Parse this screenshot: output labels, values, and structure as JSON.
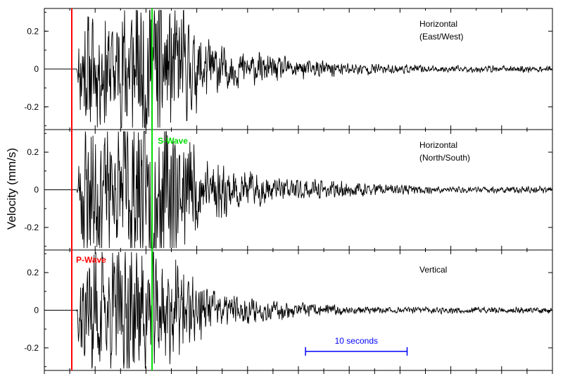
{
  "chart_data": {
    "type": "line",
    "ylabel": "Velocity (mm/s)",
    "yticks": [
      "0.2",
      "0",
      "-0.2"
    ],
    "ytick_values": [
      0.2,
      0,
      -0.2
    ],
    "ylim": [
      -0.32,
      0.32
    ],
    "time_range_s": [
      0,
      50
    ],
    "panels": [
      {
        "name": "Horizontal (East/West)",
        "label_lines": [
          "Horizontal",
          "(East/West)"
        ],
        "onset_s": 3.2,
        "peak": 0.24,
        "s_boost": 0.75,
        "decay": 0.085,
        "seed": 11
      },
      {
        "name": "Horizontal (North/South)",
        "label_lines": [
          "Horizontal",
          "(North/South)"
        ],
        "onset_s": 3.2,
        "peak": 0.3,
        "s_boost": 0.55,
        "decay": 0.09,
        "seed": 23
      },
      {
        "name": "Vertical",
        "label_lines": [
          "Vertical"
        ],
        "onset_s": 3.2,
        "peak": 0.3,
        "s_boost": 0.35,
        "decay": 0.11,
        "seed": 37
      }
    ],
    "p_wave": {
      "label": "P-Wave",
      "time_s": 2.7,
      "color": "#ff0000"
    },
    "s_wave": {
      "label": "S-Wave",
      "time_s": 10.6,
      "color": "#00dd00"
    },
    "scale_bar": {
      "label": "10 seconds",
      "start_s": 25.7,
      "duration_s": 10,
      "color": "#0000ff"
    },
    "trace_color": "#000000"
  }
}
